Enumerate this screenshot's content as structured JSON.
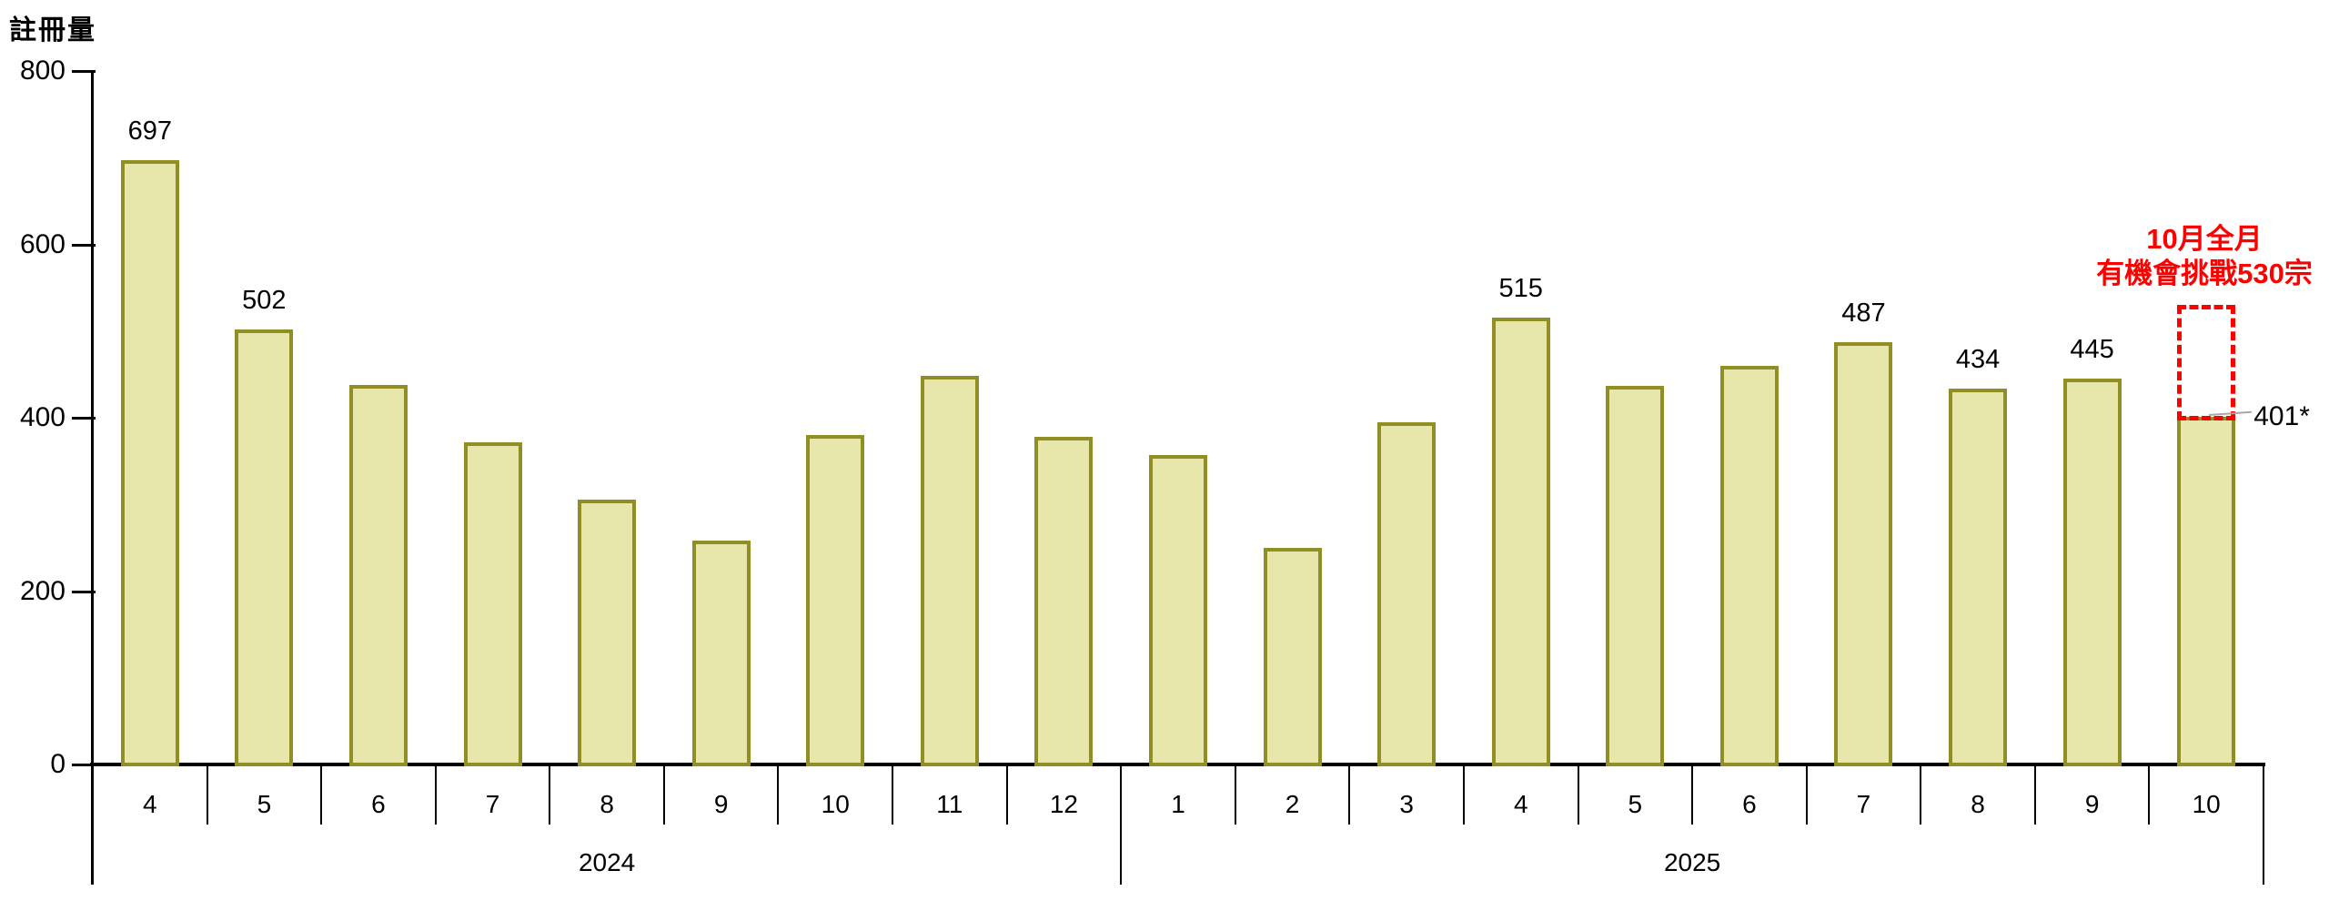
{
  "chart_data": {
    "type": "bar",
    "title": "",
    "ylabel": "註冊量",
    "xlabel": "",
    "ylim": [
      0,
      800
    ],
    "yticks": [
      "0",
      "200",
      "400",
      "600",
      "800"
    ],
    "ytick_values": [
      0,
      200,
      400,
      600,
      800
    ],
    "grid": false,
    "legend": false,
    "bar_fill_color": "#e7e6ab",
    "bar_border_color": "#918f24",
    "axis_color": "#000000",
    "groups": [
      {
        "year": "2024",
        "points": [
          {
            "month": "4",
            "value": 697,
            "label": "697"
          },
          {
            "month": "5",
            "value": 502,
            "label": "502"
          },
          {
            "month": "6",
            "value": 438
          },
          {
            "month": "7",
            "value": 372
          },
          {
            "month": "8",
            "value": 305
          },
          {
            "month": "9",
            "value": 258
          },
          {
            "month": "10",
            "value": 380
          },
          {
            "month": "11",
            "value": 448
          },
          {
            "month": "12",
            "value": 378
          }
        ]
      },
      {
        "year": "2025",
        "points": [
          {
            "month": "1",
            "value": 357
          },
          {
            "month": "2",
            "value": 250
          },
          {
            "month": "3",
            "value": 395
          },
          {
            "month": "4",
            "value": 515,
            "label": "515"
          },
          {
            "month": "5",
            "value": 437
          },
          {
            "month": "6",
            "value": 460
          },
          {
            "month": "7",
            "value": 487,
            "label": "487"
          },
          {
            "month": "8",
            "value": 434,
            "label": "434"
          },
          {
            "month": "9",
            "value": 445,
            "label": "445"
          },
          {
            "month": "10",
            "value": 401,
            "label": "401*",
            "label_position": "right"
          }
        ]
      }
    ],
    "annotation": {
      "text_line1": "10月全月",
      "text_line2": "有機會挑戰530宗",
      "target_value": 530,
      "color": "#fe0000",
      "leader_line_color": "#a8a8a8",
      "applies_to_year": "2025",
      "applies_to_month": "10"
    }
  }
}
